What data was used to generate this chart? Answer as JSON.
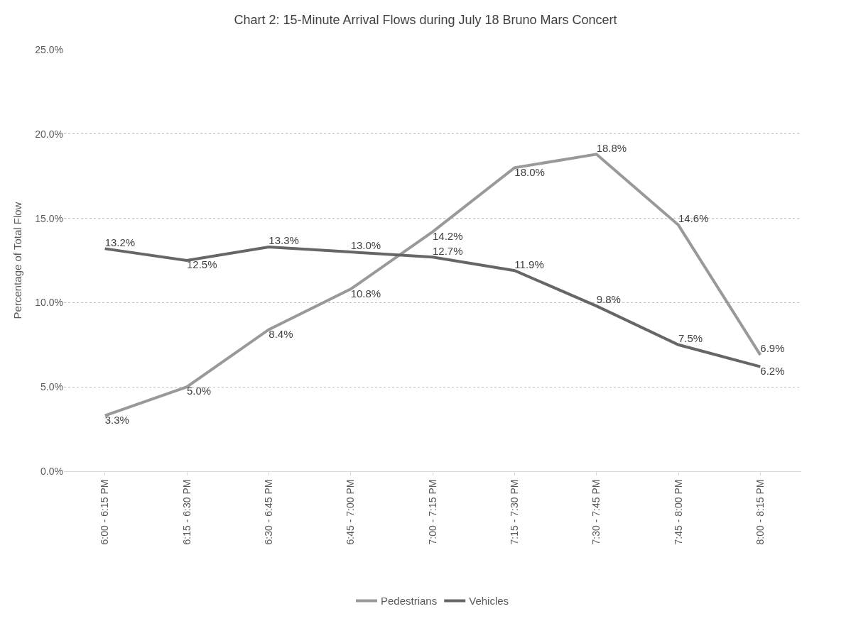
{
  "chart_data": {
    "type": "line",
    "title": "Chart 2: 15-Minute Arrival Flows during July 18 Bruno Mars Concert",
    "ylabel": "Percentage of Total Flow",
    "categories": [
      "6:00 - 6:15 PM",
      "6:15 - 6:30 PM",
      "6:30 - 6:45 PM",
      "6:45 - 7:00 PM",
      "7:00 - 7:15 PM",
      "7:15 - 7:30 PM",
      "7:30 - 7:45 PM",
      "7:45 - 8:00 PM",
      "8:00 - 8:15 PM"
    ],
    "series": [
      {
        "name": "Pedestrians",
        "color": "#999999",
        "values": [
          3.3,
          5.0,
          8.4,
          10.8,
          14.2,
          18.0,
          18.8,
          14.6,
          6.9
        ],
        "value_labels": [
          "3.3%",
          "5.0%",
          "8.4%",
          "10.8%",
          "14.2%",
          "18.0%",
          "18.8%",
          "14.6%",
          "6.9%"
        ]
      },
      {
        "name": "Vehicles",
        "color": "#666666",
        "values": [
          13.2,
          12.5,
          13.3,
          13.0,
          12.7,
          11.9,
          9.8,
          7.5,
          6.2
        ],
        "value_labels": [
          "13.2%",
          "12.5%",
          "13.3%",
          "13.0%",
          "12.7%",
          "11.9%",
          "9.8%",
          "7.5%",
          "6.2%"
        ]
      }
    ],
    "ylim": [
      0,
      25
    ],
    "yticks": [
      {
        "value": 0,
        "label": "0.0%"
      },
      {
        "value": 5,
        "label": "5.0%"
      },
      {
        "value": 10,
        "label": "10.0%"
      },
      {
        "value": 15,
        "label": "15.0%"
      },
      {
        "value": 20,
        "label": "20.0%"
      },
      {
        "value": 25,
        "label": "25.0%"
      }
    ],
    "grid": "y",
    "legend": "bottom",
    "marker": "none",
    "line_style": "solid"
  }
}
